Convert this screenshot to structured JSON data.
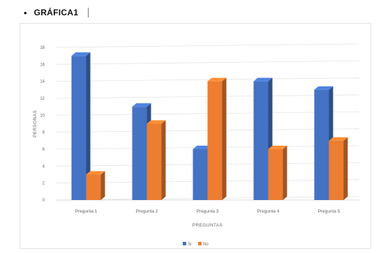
{
  "heading": {
    "bullet": "•",
    "title": "GRÁFICA1"
  },
  "chart_data": {
    "type": "bar",
    "xlabel": "PREGUNTAS",
    "ylabel": "PERSONAS",
    "ylim": [
      0,
      18
    ],
    "yticks": [
      0,
      2,
      4,
      6,
      8,
      10,
      12,
      14,
      16,
      18
    ],
    "categories": [
      "Pregunta 1",
      "Pregunta 2",
      "Pregunta 3",
      "Pregunta 4",
      "Pregunta 5"
    ],
    "series": [
      {
        "name": "Si",
        "values": [
          17,
          11,
          6,
          14,
          13
        ],
        "color": "#4472c4"
      },
      {
        "name": "No",
        "values": [
          3,
          9,
          14,
          6,
          7
        ],
        "color": "#ed7d31"
      }
    ],
    "grid": true,
    "legend_position": "bottom",
    "style": "3d-column"
  }
}
